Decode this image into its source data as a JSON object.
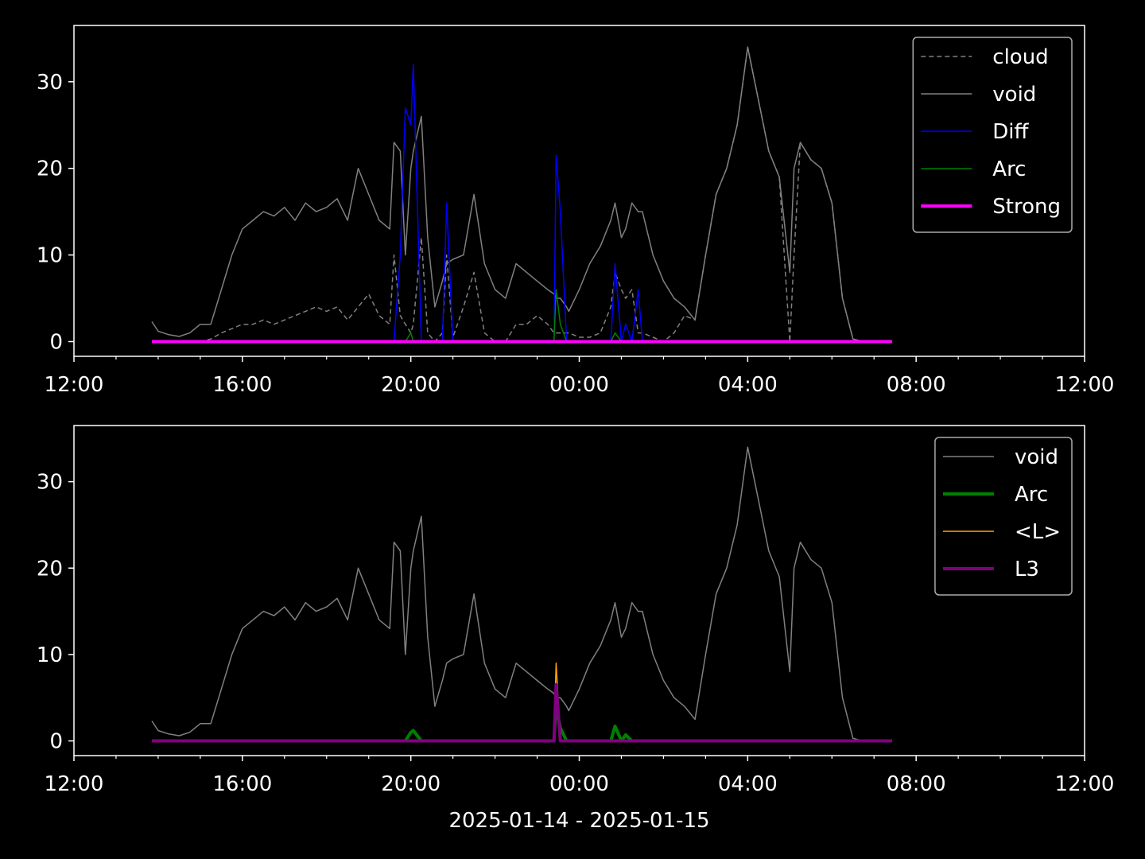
{
  "chart_data": [
    {
      "type": "line",
      "x": [
        1.85,
        2,
        2.25,
        2.5,
        2.75,
        3,
        3.25,
        3.5,
        3.75,
        4,
        4.25,
        4.5,
        4.75,
        5,
        5.25,
        5.5,
        5.75,
        6,
        6.25,
        6.5,
        6.75,
        7,
        7.25,
        7.5,
        7.6,
        7.75,
        7.87,
        8,
        8.06,
        8.25,
        8.4,
        8.57,
        8.75,
        8.85,
        9,
        9.25,
        9.5,
        9.75,
        10,
        10.25,
        10.5,
        10.75,
        11,
        11.25,
        11.4,
        11.45,
        11.55,
        11.7,
        11.75,
        12,
        12.25,
        12.5,
        12.75,
        12.85,
        13,
        13.1,
        13.25,
        13.4,
        13.5,
        13.75,
        14,
        14.25,
        14.5,
        14.75,
        15,
        15.25,
        15.5,
        15.75,
        16,
        16.25,
        16.5,
        16.75,
        17,
        17.1,
        17.25,
        17.5,
        17.75,
        18,
        18.25,
        18.5,
        18.75,
        19,
        19.25,
        19.43
      ],
      "xlim": [
        0,
        24
      ],
      "xticks": [
        {
          "value": 0,
          "label": "12:00"
        },
        {
          "value": 4,
          "label": "16:00"
        },
        {
          "value": 8,
          "label": "20:00"
        },
        {
          "value": 12,
          "label": "00:00"
        },
        {
          "value": 16,
          "label": "04:00"
        },
        {
          "value": 20,
          "label": "08:00"
        },
        {
          "value": 24,
          "label": "12:00"
        }
      ],
      "xminor_ticks": [
        1,
        2,
        3,
        5,
        6,
        7,
        9,
        10,
        11,
        13,
        14,
        15,
        17,
        18,
        19,
        21,
        22,
        23
      ],
      "ylim": [
        -1.7,
        36.5
      ],
      "yticks": [
        0,
        10,
        20,
        30
      ],
      "legend": "upper right",
      "series": [
        {
          "name": "cloud",
          "color": "#808080",
          "dash": true,
          "width": 1.5,
          "values": [
            0,
            0,
            0,
            0,
            0,
            0,
            0.3,
            1,
            1.5,
            2,
            2,
            2.5,
            2,
            2.5,
            3,
            3.5,
            4,
            3.5,
            4,
            2.5,
            4,
            5.5,
            3,
            2,
            10,
            3,
            2,
            1,
            2,
            12,
            1,
            0,
            1,
            10,
            0.5,
            4,
            8,
            1,
            0,
            0,
            2,
            2,
            3,
            2,
            1,
            1,
            1,
            1,
            1,
            0.5,
            0.5,
            1,
            4,
            8,
            6,
            5,
            6,
            1,
            1,
            0.5,
            0,
            1,
            3,
            2.5,
            10,
            17,
            20,
            25,
            34,
            28,
            22,
            19,
            0,
            10,
            23,
            21,
            20,
            16,
            5,
            0.3,
            0,
            0,
            0,
            0
          ]
        },
        {
          "name": "void",
          "color": "#808080",
          "dash": false,
          "width": 1.5,
          "values": [
            2.3,
            1.2,
            0.8,
            0.6,
            1,
            2,
            2,
            6,
            10,
            13,
            14,
            15,
            14.5,
            15.5,
            14,
            16,
            15,
            15.5,
            16.5,
            14,
            20,
            17,
            14,
            13,
            23,
            22,
            10,
            20,
            22,
            26,
            12,
            4,
            7,
            9,
            9.5,
            10,
            17,
            9,
            6,
            5,
            9,
            8,
            7,
            6,
            5.5,
            5,
            5,
            4,
            3.5,
            6,
            9,
            11,
            14,
            16,
            12,
            13,
            16,
            15,
            15,
            10,
            7,
            5,
            4,
            2.5,
            10,
            17,
            20,
            25,
            34,
            28,
            22,
            19,
            8,
            20,
            23,
            21,
            20,
            16,
            5,
            0.3,
            0,
            0,
            0,
            0
          ]
        },
        {
          "name": "Diff",
          "color": "#0000ff",
          "dash": false,
          "width": 1.5,
          "values": [
            0,
            0,
            0,
            0,
            0,
            0,
            0,
            0,
            0,
            0,
            0,
            0,
            0,
            0,
            0,
            0,
            0,
            0,
            0,
            0,
            0,
            0,
            0,
            0,
            0,
            10,
            27,
            25,
            32,
            0,
            0,
            0,
            0,
            16,
            0,
            0,
            0,
            0,
            0,
            0,
            0,
            0,
            0,
            0,
            0,
            21.5,
            15,
            0,
            0,
            0,
            0,
            0,
            0,
            9,
            0,
            2,
            0,
            6,
            0,
            0,
            0,
            0,
            0,
            0,
            0,
            0,
            0,
            0,
            0,
            0,
            0,
            0,
            0,
            0,
            0,
            0,
            0,
            0,
            0,
            0,
            0,
            0,
            0,
            0
          ]
        },
        {
          "name": "Arc",
          "color": "#008000",
          "dash": false,
          "width": 1.5,
          "values": [
            0,
            0,
            0,
            0,
            0,
            0,
            0,
            0,
            0,
            0,
            0,
            0,
            0,
            0,
            0,
            0,
            0,
            0,
            0,
            0,
            0,
            0,
            0,
            0,
            0,
            0,
            0,
            1,
            0,
            0,
            0,
            0,
            0,
            0,
            0,
            0,
            0,
            0,
            0,
            0,
            0,
            0,
            0,
            0,
            0,
            6,
            2,
            0,
            0,
            0,
            0,
            0,
            0,
            1,
            0,
            0,
            0,
            0,
            0,
            0,
            0,
            0,
            0,
            0,
            0,
            0,
            0,
            0,
            0,
            0,
            0,
            0,
            0,
            0,
            0,
            0,
            0,
            0,
            0,
            0,
            0,
            0,
            0,
            0
          ]
        },
        {
          "name": "Strong",
          "color": "#ff00ff",
          "dash": false,
          "width": 4,
          "values": [
            0,
            0,
            0,
            0,
            0,
            0,
            0,
            0,
            0,
            0,
            0,
            0,
            0,
            0,
            0,
            0,
            0,
            0,
            0,
            0,
            0,
            0,
            0,
            0,
            0,
            0,
            0,
            0,
            0,
            0,
            0,
            0,
            0,
            0,
            0,
            0,
            0,
            0,
            0,
            0,
            0,
            0,
            0,
            0,
            0,
            0,
            0,
            0,
            0,
            0,
            0,
            0,
            0,
            0,
            0,
            0,
            0,
            0,
            0,
            0,
            0,
            0,
            0,
            0,
            0,
            0,
            0,
            0,
            0,
            0,
            0,
            0,
            0,
            0,
            0,
            0,
            0,
            0,
            0,
            0,
            0,
            0,
            0,
            0
          ]
        }
      ]
    },
    {
      "type": "line",
      "xlabel": "2025-01-14 - 2025-01-15",
      "x": [
        1.85,
        2,
        2.25,
        2.5,
        2.75,
        3,
        3.25,
        3.5,
        3.75,
        4,
        4.25,
        4.5,
        4.75,
        5,
        5.25,
        5.5,
        5.75,
        6,
        6.25,
        6.5,
        6.75,
        7,
        7.25,
        7.5,
        7.6,
        7.75,
        7.87,
        8,
        8.06,
        8.25,
        8.4,
        8.57,
        8.75,
        8.85,
        9,
        9.25,
        9.5,
        9.75,
        10,
        10.25,
        10.5,
        10.75,
        11,
        11.25,
        11.4,
        11.45,
        11.55,
        11.7,
        11.75,
        12,
        12.25,
        12.5,
        12.75,
        12.85,
        13,
        13.1,
        13.25,
        13.4,
        13.5,
        13.75,
        14,
        14.25,
        14.5,
        14.75,
        15,
        15.25,
        15.5,
        15.75,
        16,
        16.25,
        16.5,
        16.75,
        17,
        17.1,
        17.25,
        17.5,
        17.75,
        18,
        18.25,
        18.5,
        18.75,
        19,
        19.25,
        19.43
      ],
      "xlim": [
        0,
        24
      ],
      "xticks": [
        {
          "value": 0,
          "label": "12:00"
        },
        {
          "value": 4,
          "label": "16:00"
        },
        {
          "value": 8,
          "label": "20:00"
        },
        {
          "value": 12,
          "label": "00:00"
        },
        {
          "value": 16,
          "label": "04:00"
        },
        {
          "value": 20,
          "label": "08:00"
        },
        {
          "value": 24,
          "label": "12:00"
        }
      ],
      "xminor_ticks": [
        1,
        2,
        3,
        5,
        6,
        7,
        9,
        10,
        11,
        13,
        14,
        15,
        17,
        18,
        19,
        21,
        22,
        23
      ],
      "ylim": [
        -1.7,
        36.5
      ],
      "yticks": [
        0,
        10,
        20,
        30
      ],
      "legend": "upper right",
      "series": [
        {
          "name": "void",
          "color": "#808080",
          "dash": false,
          "width": 1.5,
          "values": [
            2.3,
            1.2,
            0.8,
            0.6,
            1,
            2,
            2,
            6,
            10,
            13,
            14,
            15,
            14.5,
            15.5,
            14,
            16,
            15,
            15.5,
            16.5,
            14,
            20,
            17,
            14,
            13,
            23,
            22,
            10,
            20,
            22,
            26,
            12,
            4,
            7,
            9,
            9.5,
            10,
            17,
            9,
            6,
            5,
            9,
            8,
            7,
            6,
            5.5,
            5,
            5,
            4,
            3.5,
            6,
            9,
            11,
            14,
            16,
            12,
            13,
            16,
            15,
            15,
            10,
            7,
            5,
            4,
            2.5,
            10,
            17,
            20,
            25,
            34,
            28,
            22,
            19,
            8,
            20,
            23,
            21,
            20,
            16,
            5,
            0.3,
            0,
            0,
            0,
            0
          ]
        },
        {
          "name": "Arc",
          "color": "#008000",
          "dash": false,
          "width": 4,
          "values": [
            0,
            0,
            0,
            0,
            0,
            0,
            0,
            0,
            0,
            0,
            0,
            0,
            0,
            0,
            0,
            0,
            0,
            0,
            0,
            0,
            0,
            0,
            0,
            0,
            0,
            0,
            0,
            1,
            1.2,
            0,
            0,
            0,
            0,
            0,
            0,
            0,
            0,
            0,
            0,
            0,
            0,
            0,
            0,
            0,
            0,
            4,
            1.5,
            0,
            0,
            0,
            0,
            0,
            0,
            1.7,
            0,
            0.7,
            0,
            0,
            0,
            0,
            0,
            0,
            0,
            0,
            0,
            0,
            0,
            0,
            0,
            0,
            0,
            0,
            0,
            0,
            0,
            0,
            0,
            0,
            0,
            0,
            0,
            0,
            0,
            0
          ]
        },
        {
          "name": "<L>",
          "color": "#ffa500",
          "dash": false,
          "width": 1.5,
          "values": [
            0,
            0,
            0,
            0,
            0,
            0,
            0,
            0,
            0,
            0,
            0,
            0,
            0,
            0,
            0,
            0,
            0,
            0,
            0,
            0,
            0,
            0,
            0,
            0,
            0,
            0,
            0,
            0,
            0,
            0,
            0,
            0,
            0,
            0,
            0,
            0,
            0,
            0,
            0,
            0,
            0,
            0,
            0,
            0,
            0,
            9,
            0,
            0,
            0,
            0,
            0,
            0,
            0,
            0,
            0,
            0,
            0,
            0,
            0,
            0,
            0,
            0,
            0,
            0,
            0,
            0,
            0,
            0,
            0,
            0,
            0,
            0,
            0,
            0,
            0,
            0,
            0,
            0,
            0,
            0,
            0,
            0,
            0,
            0
          ]
        },
        {
          "name": "L3",
          "color": "#800080",
          "dash": false,
          "width": 4,
          "values": [
            0,
            0,
            0,
            0,
            0,
            0,
            0,
            0,
            0,
            0,
            0,
            0,
            0,
            0,
            0,
            0,
            0,
            0,
            0,
            0,
            0,
            0,
            0,
            0,
            0,
            0,
            0,
            0,
            0,
            0,
            0,
            0,
            0,
            0,
            0,
            0,
            0,
            0,
            0,
            0,
            0,
            0,
            0,
            0,
            0,
            6.5,
            0,
            0,
            0,
            0,
            0,
            0,
            0,
            0,
            0,
            0,
            0,
            0,
            0,
            0,
            0,
            0,
            0,
            0,
            0,
            0,
            0,
            0,
            0,
            0,
            0,
            0,
            0,
            0,
            0,
            0,
            0,
            0,
            0,
            0,
            0,
            0,
            0,
            0
          ]
        }
      ]
    }
  ]
}
